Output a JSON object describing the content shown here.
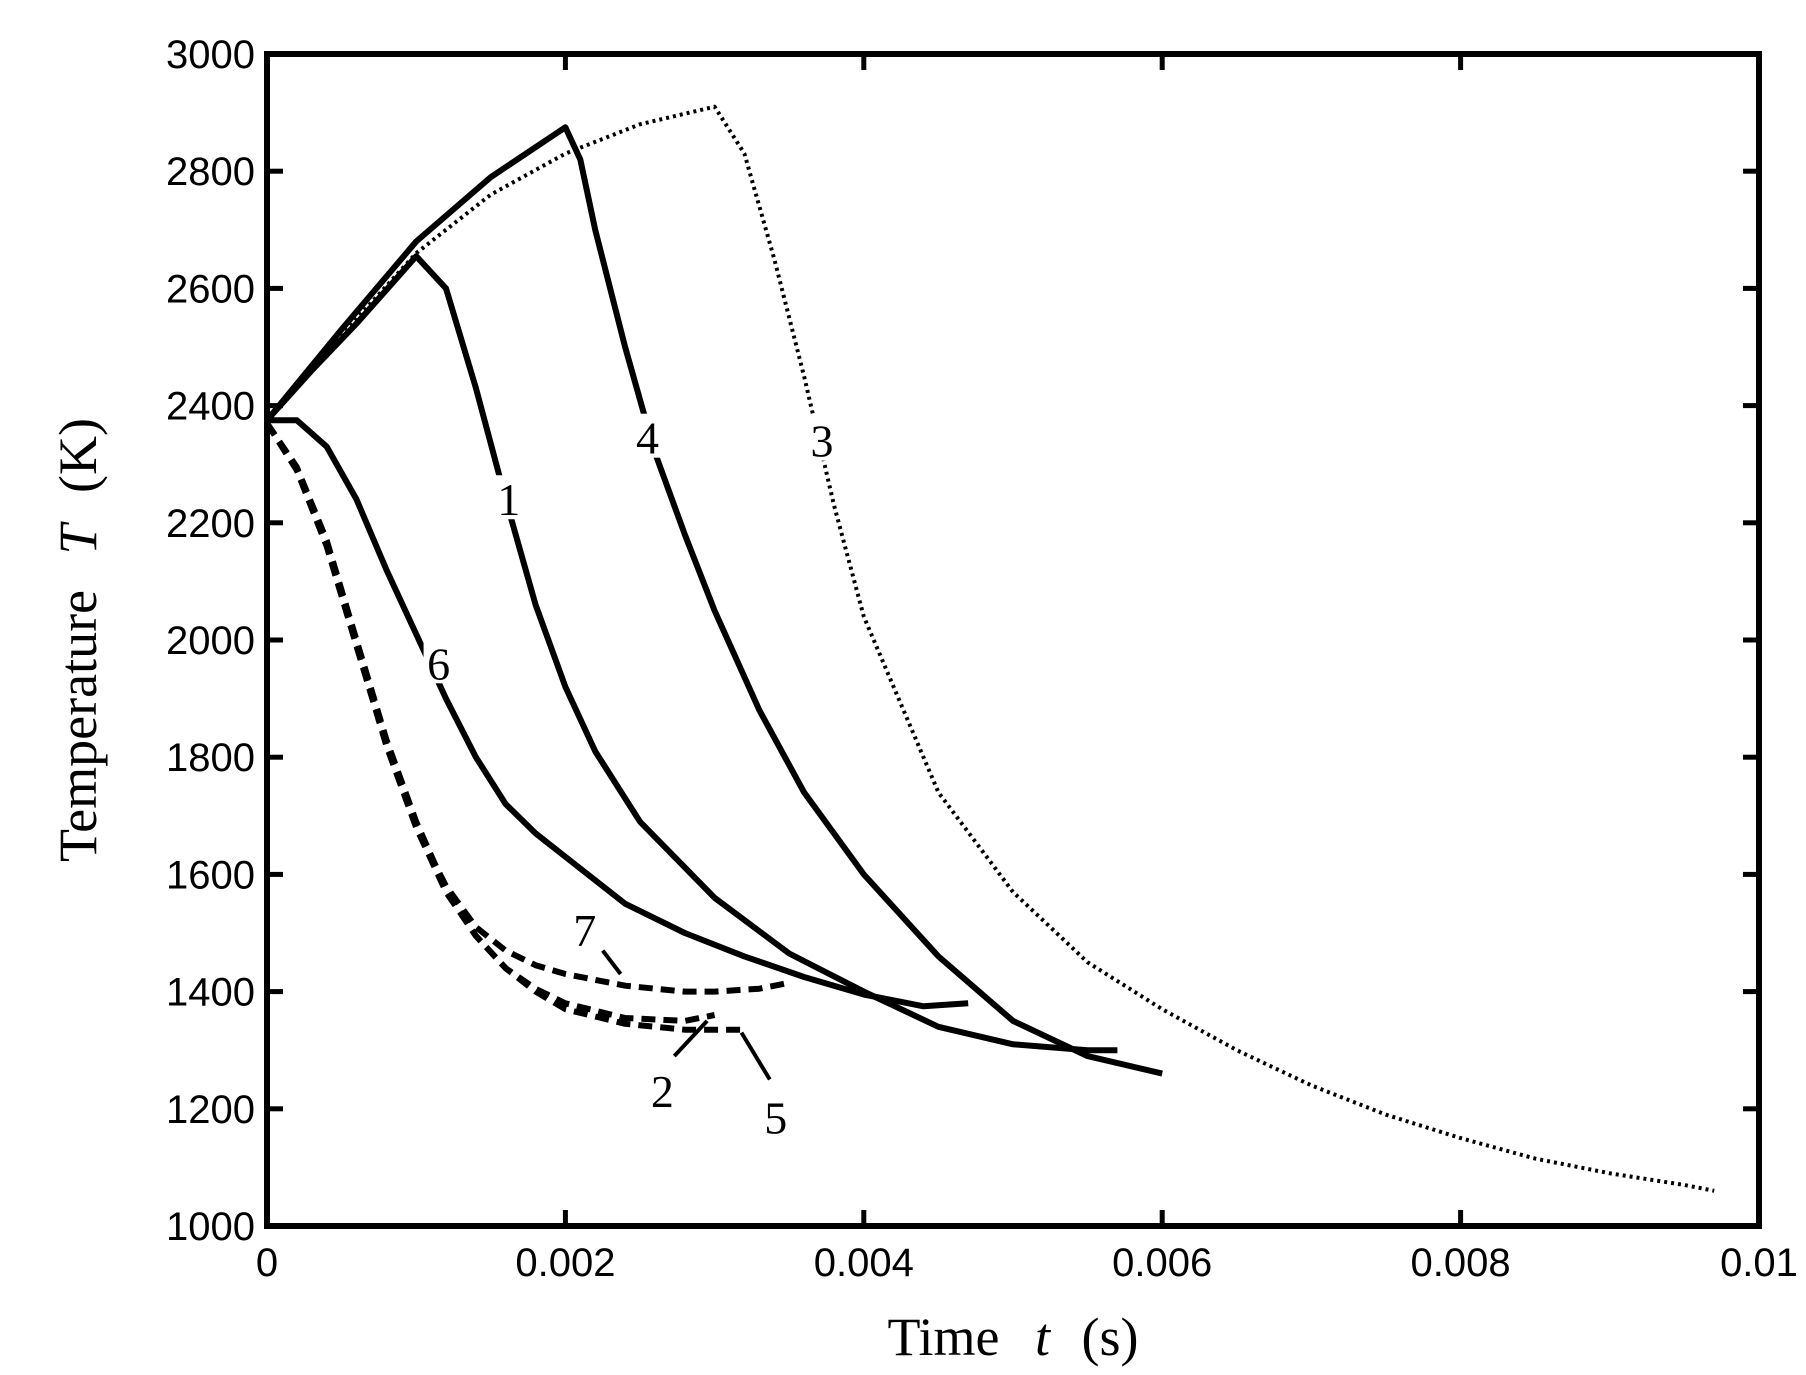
{
  "chart_data": {
    "type": "line",
    "xlabel": {
      "prefix": "Time",
      "symbol": "t",
      "unit": "(s)"
    },
    "ylabel": {
      "prefix": "Temperature",
      "symbol": "T",
      "unit": "(K)"
    },
    "xlim": [
      0,
      0.01
    ],
    "ylim": [
      1000,
      3000
    ],
    "x_ticks": [
      0,
      0.002,
      0.004,
      0.006,
      0.008,
      0.01
    ],
    "x_tick_labels": [
      "0",
      "0.002",
      "0.004",
      "0.006",
      "0.008",
      "0.01"
    ],
    "y_ticks": [
      1000,
      1200,
      1400,
      1600,
      1800,
      2000,
      2200,
      2400,
      2600,
      2800,
      3000
    ],
    "y_tick_labels": [
      "1000",
      "1200",
      "1400",
      "1600",
      "1800",
      "2000",
      "2200",
      "2400",
      "2600",
      "2800",
      "3000"
    ],
    "grid": false,
    "colors": {
      "line": "#000000",
      "background": "#ffffff"
    },
    "series": [
      {
        "label": "1",
        "style": "solid",
        "x": [
          0,
          0.0003,
          0.0006,
          0.001,
          0.0012,
          0.0014,
          0.0016,
          0.0018,
          0.002,
          0.0022,
          0.0025,
          0.003,
          0.0035,
          0.004,
          0.0045,
          0.005,
          0.0055,
          0.0057
        ],
        "y": [
          2375,
          2460,
          2540,
          2655,
          2600,
          2430,
          2240,
          2060,
          1920,
          1810,
          1690,
          1560,
          1465,
          1400,
          1340,
          1310,
          1300,
          1300
        ]
      },
      {
        "label": "2",
        "style": "dashed",
        "x": [
          0,
          0.0002,
          0.0004,
          0.0006,
          0.0008,
          0.001,
          0.0012,
          0.0014,
          0.0016,
          0.0018,
          0.002,
          0.0024,
          0.0028,
          0.003
        ],
        "y": [
          2370,
          2290,
          2160,
          1990,
          1820,
          1680,
          1570,
          1495,
          1440,
          1405,
          1380,
          1355,
          1350,
          1360
        ]
      },
      {
        "label": "3",
        "style": "dotted",
        "x": [
          0,
          0.0005,
          0.001,
          0.0015,
          0.002,
          0.0025,
          0.003,
          0.0032,
          0.0034,
          0.0036,
          0.0038,
          0.004,
          0.0045,
          0.005,
          0.0055,
          0.006,
          0.0065,
          0.007,
          0.0075,
          0.008,
          0.0085,
          0.009,
          0.0095,
          0.0097
        ],
        "y": [
          2375,
          2520,
          2660,
          2760,
          2830,
          2880,
          2910,
          2830,
          2650,
          2450,
          2230,
          2040,
          1740,
          1570,
          1450,
          1370,
          1300,
          1240,
          1190,
          1150,
          1115,
          1090,
          1070,
          1060
        ]
      },
      {
        "label": "4",
        "style": "solid",
        "x": [
          0,
          0.0005,
          0.001,
          0.0015,
          0.002,
          0.0021,
          0.0022,
          0.0024,
          0.0026,
          0.0028,
          0.003,
          0.0033,
          0.0036,
          0.004,
          0.0045,
          0.005,
          0.0055,
          0.006
        ],
        "y": [
          2375,
          2530,
          2680,
          2790,
          2875,
          2820,
          2700,
          2500,
          2320,
          2180,
          2050,
          1880,
          1740,
          1600,
          1460,
          1350,
          1290,
          1260
        ]
      },
      {
        "label": "5",
        "style": "dashed",
        "x": [
          0,
          0.0002,
          0.0004,
          0.0006,
          0.0008,
          0.001,
          0.0012,
          0.0014,
          0.0016,
          0.0018,
          0.002,
          0.0024,
          0.0028,
          0.003,
          0.0032
        ],
        "y": [
          2370,
          2295,
          2170,
          2000,
          1830,
          1690,
          1575,
          1495,
          1440,
          1400,
          1370,
          1345,
          1335,
          1335,
          1335
        ]
      },
      {
        "label": "6",
        "style": "solid",
        "x": [
          0,
          0.0002,
          0.0004,
          0.0006,
          0.0008,
          0.001,
          0.0012,
          0.0014,
          0.0016,
          0.0018,
          0.002,
          0.0024,
          0.0028,
          0.0032,
          0.0036,
          0.004,
          0.0044,
          0.0047
        ],
        "y": [
          2375,
          2375,
          2330,
          2240,
          2120,
          2010,
          1900,
          1800,
          1720,
          1670,
          1630,
          1550,
          1500,
          1460,
          1425,
          1395,
          1375,
          1380
        ]
      },
      {
        "label": "7",
        "style": "dashed",
        "x": [
          0,
          0.0002,
          0.0004,
          0.0006,
          0.0008,
          0.001,
          0.0012,
          0.0014,
          0.0016,
          0.0018,
          0.002,
          0.0024,
          0.0028,
          0.003,
          0.0033,
          0.0035
        ],
        "y": [
          2370,
          2290,
          2160,
          1990,
          1820,
          1680,
          1580,
          1510,
          1470,
          1445,
          1430,
          1410,
          1400,
          1400,
          1405,
          1415
        ]
      }
    ],
    "annotations": [
      {
        "text": "1",
        "x": 0.00162,
        "y": 2230,
        "leader": null
      },
      {
        "text": "2",
        "x": 0.00265,
        "y": 1220,
        "leader": [
          0.00273,
          1290,
          0.00295,
          1350
        ]
      },
      {
        "text": "3",
        "x": 0.00372,
        "y": 2330,
        "leader": null
      },
      {
        "text": "4",
        "x": 0.00255,
        "y": 2335,
        "leader": null
      },
      {
        "text": "5",
        "x": 0.00341,
        "y": 1175,
        "leader": [
          0.00337,
          1250,
          0.00318,
          1330
        ]
      },
      {
        "text": "6",
        "x": 0.00115,
        "y": 1950,
        "leader": null
      },
      {
        "text": "7",
        "x": 0.00213,
        "y": 1495,
        "leader": [
          0.00225,
          1470,
          0.00237,
          1430
        ]
      }
    ]
  }
}
